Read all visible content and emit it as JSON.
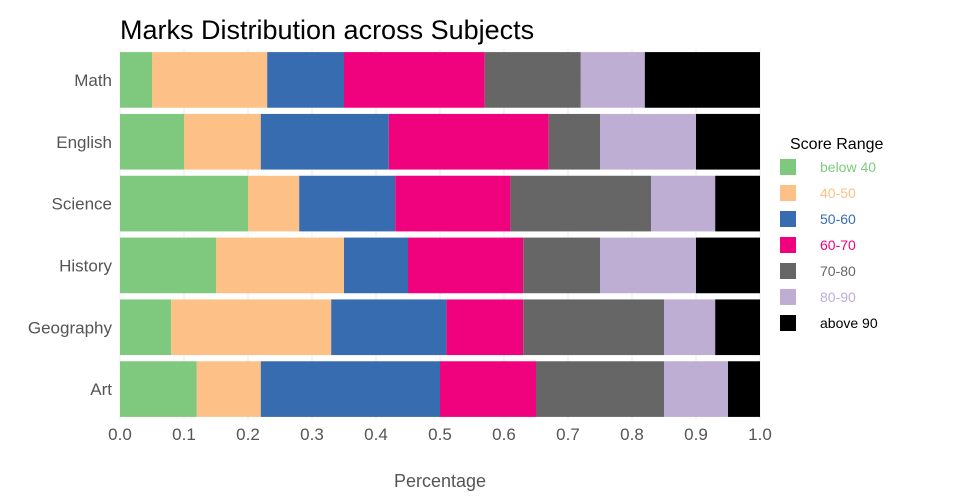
{
  "chart_data": {
    "type": "bar",
    "orientation": "horizontal",
    "stacked": true,
    "title": "Marks Distribution across Subjects",
    "xlabel": "Percentage",
    "ylabel": "",
    "xlim": [
      0,
      1
    ],
    "x_ticks": [
      "0.0",
      "0.1",
      "0.2",
      "0.3",
      "0.4",
      "0.5",
      "0.6",
      "0.7",
      "0.8",
      "0.9",
      "1.0"
    ],
    "grid": true,
    "legend_title": "Score Range",
    "legend_position": "right",
    "categories": [
      "Math",
      "English",
      "Science",
      "History",
      "Geography",
      "Art"
    ],
    "series": [
      {
        "name": "below 40",
        "color": "#7fc97f",
        "values": [
          0.05,
          0.1,
          0.2,
          0.15,
          0.08,
          0.12
        ]
      },
      {
        "name": "40-50",
        "color": "#fdc086",
        "values": [
          0.18,
          0.12,
          0.08,
          0.2,
          0.25,
          0.1
        ]
      },
      {
        "name": "50-60",
        "color": "#386cb0",
        "values": [
          0.12,
          0.2,
          0.15,
          0.1,
          0.18,
          0.28
        ]
      },
      {
        "name": "60-70",
        "color": "#f0027f",
        "values": [
          0.22,
          0.25,
          0.18,
          0.18,
          0.12,
          0.15
        ]
      },
      {
        "name": "70-80",
        "color": "#666666",
        "values": [
          0.15,
          0.08,
          0.22,
          0.12,
          0.22,
          0.2
        ]
      },
      {
        "name": "80-90",
        "color": "#beaed4",
        "values": [
          0.1,
          0.15,
          0.1,
          0.15,
          0.08,
          0.1
        ]
      },
      {
        "name": "above 90",
        "color": "#000000",
        "values": [
          0.18,
          0.1,
          0.07,
          0.1,
          0.07,
          0.05
        ]
      }
    ]
  }
}
